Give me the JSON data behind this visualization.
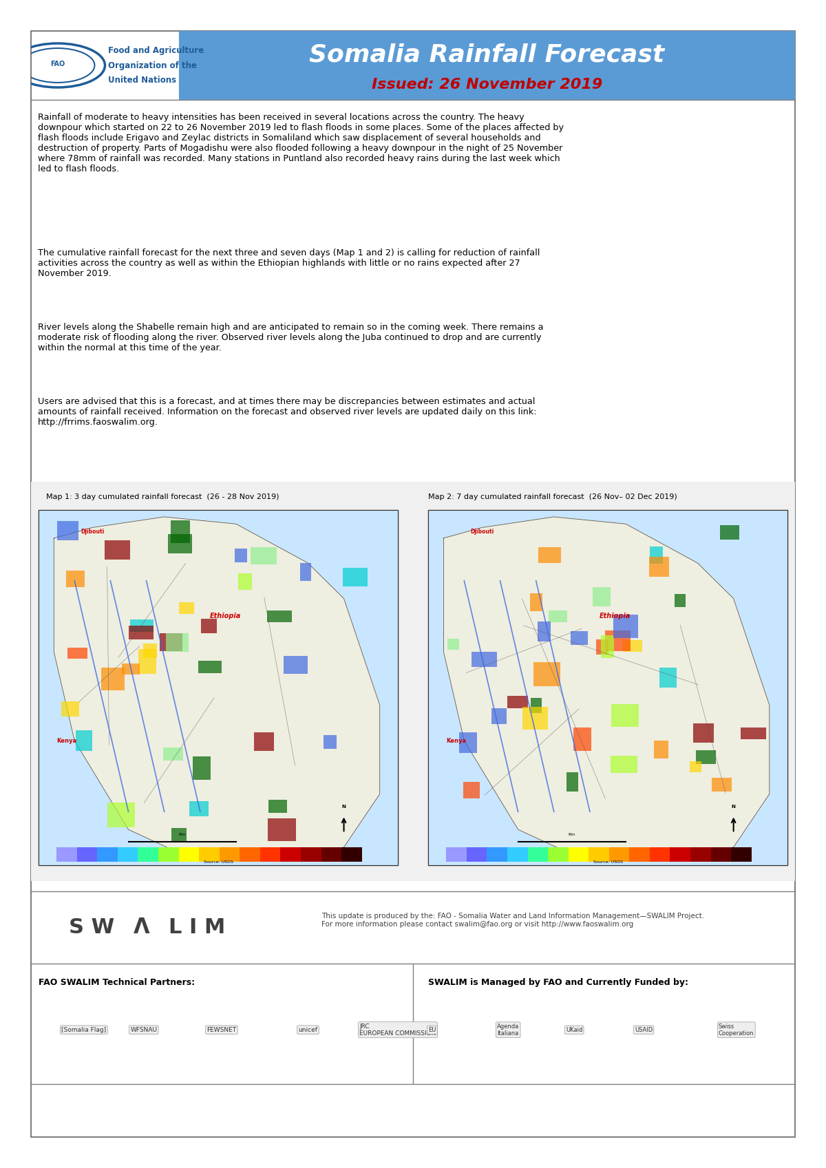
{
  "title": "Somalia Rainfall Forecast",
  "subtitle": "Issued: 26 November 2019",
  "header_bg_color": "#5B9BD5",
  "header_text_color": "#FFFFFF",
  "subtitle_color": "#C00000",
  "fao_text_color": "#1F5C99",
  "body_text_color": "#000000",
  "border_color": "#808080",
  "background_color": "#FFFFFF",
  "paragraph1": "Rainfall of moderate to heavy intensities has been received in several locations across the country. The heavy downpour which started on 22 to 26 November 2019 led to flash floods in some places. Some of the places affected by flash floods include Erigavo and Zeylac districts in Somaliland which saw displacement of several households and destruction of property. Parts of Mogadishu were also flooded following a heavy downpour in the night of 25 November where 78mm of rainfall was recorded. Many stations in Puntland also recorded heavy rains during the last week which led to flash floods.",
  "paragraph2": "The cumulative rainfall forecast for the next three and seven days (Map 1 and 2) is calling for reduction of rainfall activities across the country as well as within the Ethiopian highlands with little or no rains expected after 27 November 2019.",
  "paragraph3": "River levels along the Shabelle remain high and are anticipated to remain so in the coming week. There remains a moderate risk of flooding along the river. Observed river levels along the Juba continued to drop and are currently within the normal at this time of the year.",
  "paragraph4": "Users are advised that this is a forecast, and at times there may be discrepancies between estimates and actual amounts of rainfall received. Information on the forecast and observed river levels are updated daily on this link: http://frrims.faoswalim.org.",
  "map1_title": "Map 1: 3 day cumulated rainfall forecast  (26 - 28 Nov 2019)",
  "map2_title": "Map 2: 7 day cumulated rainfall forecast  (26 Nov– 02 Dec 2019)",
  "swalim_footer": "This update is produced by the: FAO - Somalia Water and Land Information Management—SWALIM Project.\nFor more information please contact swalim@fao.org or visit http://www.faoswalim.org",
  "fao_org_line1": "Food and Agriculture",
  "fao_org_line2": "Organization of the",
  "fao_org_line3": "United Nations",
  "partners_label": "FAO SWALIM Technical Partners:",
  "managed_label": "SWALIM is Managed by FAO and Currently Funded by:",
  "link_color": "#0563C1",
  "swalim_text_color": "#404040",
  "footer_divider_color": "#808080",
  "map_section_bg": "#F5F5F5"
}
